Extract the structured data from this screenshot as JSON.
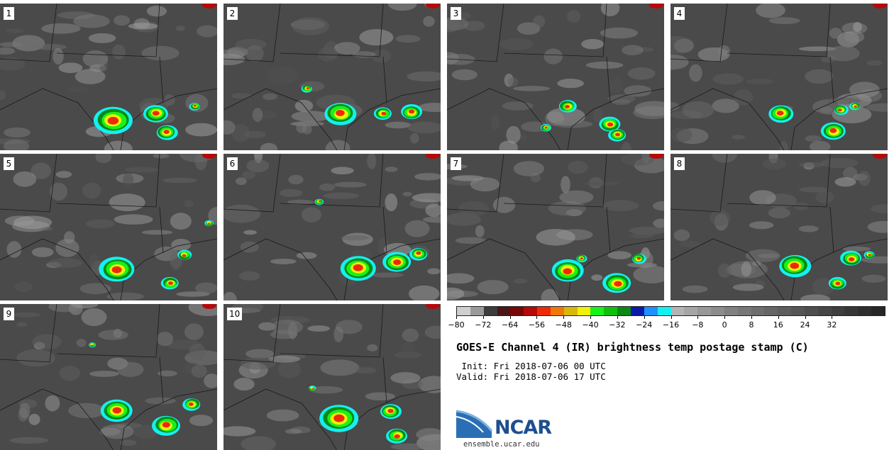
{
  "panels": [
    {
      "label": "1"
    },
    {
      "label": "2"
    },
    {
      "label": "3"
    },
    {
      "label": "4"
    },
    {
      "label": "5"
    },
    {
      "label": "6"
    },
    {
      "label": "7"
    },
    {
      "label": "8"
    },
    {
      "label": "9"
    },
    {
      "label": "10"
    }
  ],
  "colorbar": {
    "colors": [
      "#cfcfcf",
      "#9a9a9a",
      "#3c3c3c",
      "#4a1616",
      "#760808",
      "#b40a0a",
      "#ee2a0a",
      "#f0780a",
      "#d8b80a",
      "#f0f00a",
      "#1af01a",
      "#10c010",
      "#0a8a14",
      "#0a1aa8",
      "#1e90ff",
      "#14f0f0",
      "#b4b4b4",
      "#a6a6a6",
      "#989898",
      "#8c8c8c",
      "#808080",
      "#777777",
      "#6e6e6e",
      "#666666",
      "#5e5e5e",
      "#565656",
      "#4e4e4e",
      "#464646",
      "#3e3e3e",
      "#363636",
      "#2e2e2e",
      "#262626"
    ],
    "tick_labels": [
      "−80",
      "−72",
      "−64",
      "−56",
      "−48",
      "−40",
      "−32",
      "−24",
      "−16",
      "−8",
      "0",
      "8",
      "16",
      "24",
      "32"
    ],
    "min": -80,
    "max": 48,
    "tick_values": [
      -80,
      -72,
      -64,
      -56,
      -48,
      -40,
      -32,
      -24,
      -16,
      -8,
      0,
      8,
      16,
      24,
      32
    ]
  },
  "title": "GOES-E Channel 4 (IR) brightness temp postage stamp (C)",
  "init_line": " Init: Fri 2018-07-06 00 UTC",
  "valid_line": "Valid: Fri 2018-07-06 17 UTC",
  "logo": {
    "text": "NCAR",
    "url": "ensemble.ucar.edu"
  }
}
